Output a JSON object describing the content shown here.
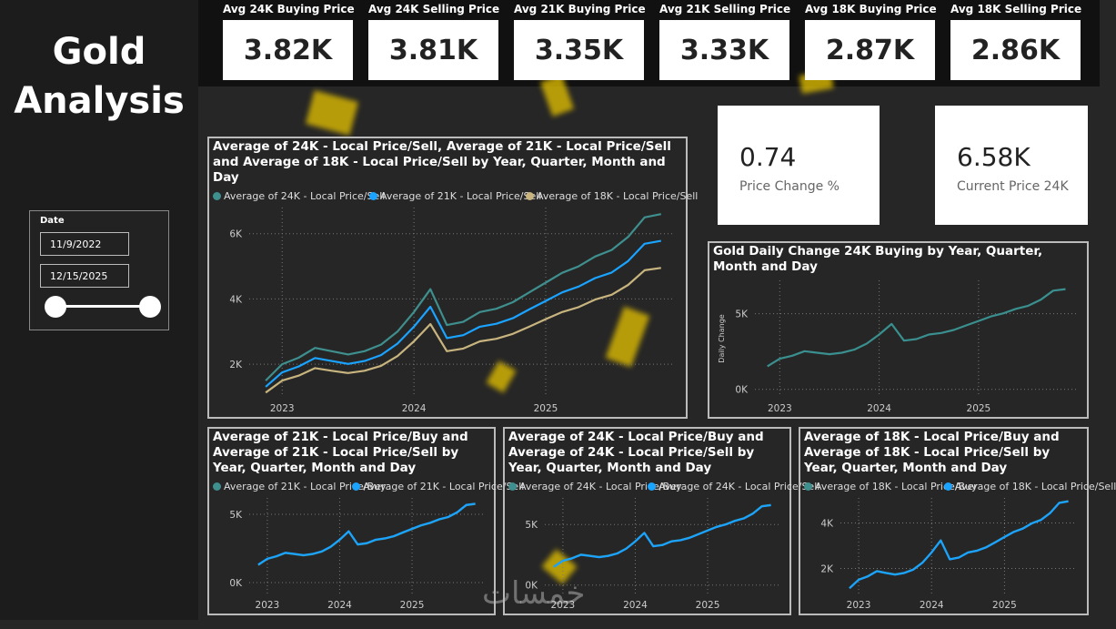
{
  "page_title": "Gold Analysis",
  "kpis": [
    {
      "label": "Avg 24K Buying Price",
      "value": "3.82K"
    },
    {
      "label": "Avg 24K Selling Price",
      "value": "3.81K"
    },
    {
      "label": "Avg 21K Buying Price",
      "value": "3.35K"
    },
    {
      "label": "Avg 21K Selling Price",
      "value": "3.33K"
    },
    {
      "label": "Avg 18K Buying Price",
      "value": "2.87K"
    },
    {
      "label": "Avg 18K Selling Price",
      "value": "2.86K"
    }
  ],
  "cards": [
    {
      "value": "0.74",
      "label": "Price Change %"
    },
    {
      "value": "6.58K",
      "label": "Current Price 24K"
    }
  ],
  "slicer": {
    "title": "Date",
    "start": "11/9/2022",
    "end": "12/15/2025"
  },
  "watermark": "خمسات",
  "chart_data": [
    {
      "type": "line",
      "title": "Average of 24K - Local Price/Sell, Average of 21K - Local Price/Sell and Average of 18K - Local Price/Sell by Year, Quarter, Month and Day",
      "x": [
        2022.875,
        2023,
        2023.125,
        2023.25,
        2023.375,
        2023.5,
        2023.625,
        2023.75,
        2023.875,
        2024,
        2024.125,
        2024.25,
        2024.375,
        2024.5,
        2024.625,
        2024.75,
        2024.875,
        2025,
        2025.125,
        2025.25,
        2025.375,
        2025.5,
        2025.625,
        2025.75,
        2025.875
      ],
      "series": [
        {
          "name": "Average of 24K - Local Price/Sell",
          "color": "#3f8f8f",
          "values": [
            1500,
            2000,
            2200,
            2500,
            2400,
            2300,
            2400,
            2600,
            3000,
            3600,
            4300,
            3200,
            3300,
            3600,
            3700,
            3900,
            4200,
            4500,
            4800,
            5000,
            5300,
            5500,
            5900,
            6500,
            6600
          ]
        },
        {
          "name": "Average of 21K - Local Price/Sell",
          "color": "#1aa3ff",
          "values": [
            1310,
            1750,
            1930,
            2190,
            2100,
            2010,
            2100,
            2280,
            2630,
            3150,
            3760,
            2800,
            2890,
            3150,
            3240,
            3410,
            3680,
            3940,
            4200,
            4380,
            4640,
            4810,
            5160,
            5690,
            5780
          ]
        },
        {
          "name": "Average of 18K - Local Price/Sell",
          "color": "#c8b47e",
          "values": [
            1130,
            1500,
            1650,
            1880,
            1800,
            1730,
            1800,
            1950,
            2250,
            2700,
            3230,
            2400,
            2480,
            2700,
            2780,
            2930,
            3150,
            3380,
            3600,
            3750,
            3980,
            4130,
            4430,
            4880,
            4950
          ]
        }
      ],
      "xlim": [
        2022.75,
        2025.98
      ],
      "xticks": [
        2023,
        2024,
        2025
      ],
      "ylim": [
        1000,
        6800
      ],
      "yticks": [
        {
          "value": 2000,
          "label": "2K"
        },
        {
          "value": 4000,
          "label": "4K"
        },
        {
          "value": 6000,
          "label": "6K"
        }
      ],
      "grid": true
    },
    {
      "type": "line",
      "title": "Gold Daily Change 24K Buying by Year, Quarter, Month and Day",
      "ylabel": "Daily Change",
      "x": [
        2022.875,
        2023,
        2023.125,
        2023.25,
        2023.375,
        2023.5,
        2023.625,
        2023.75,
        2023.875,
        2024,
        2024.125,
        2024.25,
        2024.375,
        2024.5,
        2024.625,
        2024.75,
        2024.875,
        2025,
        2025.125,
        2025.25,
        2025.375,
        2025.5,
        2025.625,
        2025.75,
        2025.875
      ],
      "series": [
        {
          "color": "#3a8f8f",
          "values": [
            1520,
            2020,
            2220,
            2520,
            2420,
            2320,
            2420,
            2620,
            3020,
            3620,
            4320,
            3220,
            3320,
            3620,
            3720,
            3920,
            4220,
            4520,
            4820,
            5020,
            5320,
            5520,
            5920,
            6520,
            6620
          ]
        }
      ],
      "xlim": [
        2022.75,
        2025.98
      ],
      "xticks": [
        2023,
        2024,
        2025
      ],
      "ylim": [
        -500,
        7200
      ],
      "yticks": [
        {
          "value": 0,
          "label": "0K"
        },
        {
          "value": 5000,
          "label": "5K"
        }
      ],
      "grid": true
    },
    {
      "type": "line",
      "title": "Average of 21K - Local Price/Buy and Average of 21K - Local Price/Sell by Year, Quarter, Month and Day",
      "x": [
        2022.875,
        2023,
        2023.125,
        2023.25,
        2023.375,
        2023.5,
        2023.625,
        2023.75,
        2023.875,
        2024,
        2024.125,
        2024.25,
        2024.375,
        2024.5,
        2024.625,
        2024.75,
        2024.875,
        2025,
        2025.125,
        2025.25,
        2025.375,
        2025.5,
        2025.625,
        2025.75,
        2025.875
      ],
      "series": [
        {
          "name": "Average of 21K - Local Price/Buy",
          "color": "#3f8f8f",
          "values": [
            1290,
            1730,
            1910,
            2170,
            2080,
            1990,
            2080,
            2260,
            2610,
            3130,
            3740,
            2780,
            2870,
            3130,
            3220,
            3390,
            3660,
            3920,
            4180,
            4360,
            4620,
            4790,
            5140,
            5670,
            5760
          ]
        },
        {
          "name": "Average of 21K - Local Price/Sell",
          "color": "#1aa3ff",
          "values": [
            1310,
            1750,
            1930,
            2190,
            2100,
            2010,
            2100,
            2280,
            2630,
            3150,
            3760,
            2800,
            2890,
            3150,
            3240,
            3410,
            3680,
            3940,
            4200,
            4380,
            4640,
            4810,
            5160,
            5690,
            5780
          ]
        }
      ],
      "xlim": [
        2022.75,
        2025.98
      ],
      "xticks": [
        2023,
        2024,
        2025
      ],
      "ylim": [
        -800,
        6200
      ],
      "yticks": [
        {
          "value": 0,
          "label": "0K"
        },
        {
          "value": 5000,
          "label": "5K"
        }
      ],
      "grid": true
    },
    {
      "type": "line",
      "title": "Average of 24K - Local Price/Buy and Average of 24K - Local Price/Sell by Year, Quarter, Month and Day",
      "x": [
        2022.875,
        2023,
        2023.125,
        2023.25,
        2023.375,
        2023.5,
        2023.625,
        2023.75,
        2023.875,
        2024,
        2024.125,
        2024.25,
        2024.375,
        2024.5,
        2024.625,
        2024.75,
        2024.875,
        2025,
        2025.125,
        2025.25,
        2025.375,
        2025.5,
        2025.625,
        2025.75,
        2025.875
      ],
      "series": [
        {
          "name": "Average of 24K - Local Price/Buy",
          "color": "#3f8f8f",
          "values": [
            1520,
            2020,
            2220,
            2520,
            2420,
            2320,
            2420,
            2620,
            3020,
            3620,
            4320,
            3220,
            3320,
            3620,
            3720,
            3920,
            4220,
            4520,
            4820,
            5020,
            5320,
            5520,
            5920,
            6520,
            6620
          ]
        },
        {
          "name": "Average of 24K - Local Price/Sell",
          "color": "#1aa3ff",
          "values": [
            1500,
            2000,
            2200,
            2500,
            2400,
            2300,
            2400,
            2600,
            3000,
            3600,
            4300,
            3200,
            3300,
            3600,
            3700,
            3900,
            4200,
            4500,
            4800,
            5000,
            5300,
            5500,
            5900,
            6500,
            6600
          ]
        }
      ],
      "xlim": [
        2022.75,
        2025.98
      ],
      "xticks": [
        2023,
        2024,
        2025
      ],
      "ylim": [
        -700,
        7200
      ],
      "yticks": [
        {
          "value": 0,
          "label": "0K"
        },
        {
          "value": 5000,
          "label": "5K"
        }
      ],
      "grid": true
    },
    {
      "type": "line",
      "title": "Average of 18K - Local Price/Buy and Average of 18K - Local Price/Sell by Year, Quarter, Month and Day",
      "x": [
        2022.875,
        2023,
        2023.125,
        2023.25,
        2023.375,
        2023.5,
        2023.625,
        2023.75,
        2023.875,
        2024,
        2024.125,
        2024.25,
        2024.375,
        2024.5,
        2024.625,
        2024.75,
        2024.875,
        2025,
        2025.125,
        2025.25,
        2025.375,
        2025.5,
        2025.625,
        2025.75,
        2025.875
      ],
      "series": [
        {
          "name": "Average of 18K - Local Price/Buy",
          "color": "#3f8f8f",
          "values": [
            1140,
            1510,
            1660,
            1890,
            1810,
            1740,
            1810,
            1960,
            2260,
            2710,
            3240,
            2410,
            2490,
            2710,
            2790,
            2940,
            3160,
            3390,
            3610,
            3760,
            3990,
            4140,
            4440,
            4890,
            4960
          ]
        },
        {
          "name": "Average of 18K - Local Price/Sell",
          "color": "#1aa3ff",
          "values": [
            1130,
            1500,
            1650,
            1880,
            1800,
            1730,
            1800,
            1950,
            2250,
            2700,
            3230,
            2400,
            2480,
            2700,
            2780,
            2930,
            3150,
            3380,
            3600,
            3750,
            3980,
            4130,
            4430,
            4880,
            4950
          ]
        }
      ],
      "xlim": [
        2022.75,
        2025.98
      ],
      "xticks": [
        2023,
        2024,
        2025
      ],
      "ylim": [
        900,
        5100
      ],
      "yticks": [
        {
          "value": 2000,
          "label": "2K"
        },
        {
          "value": 4000,
          "label": "4K"
        }
      ],
      "grid": true
    }
  ]
}
